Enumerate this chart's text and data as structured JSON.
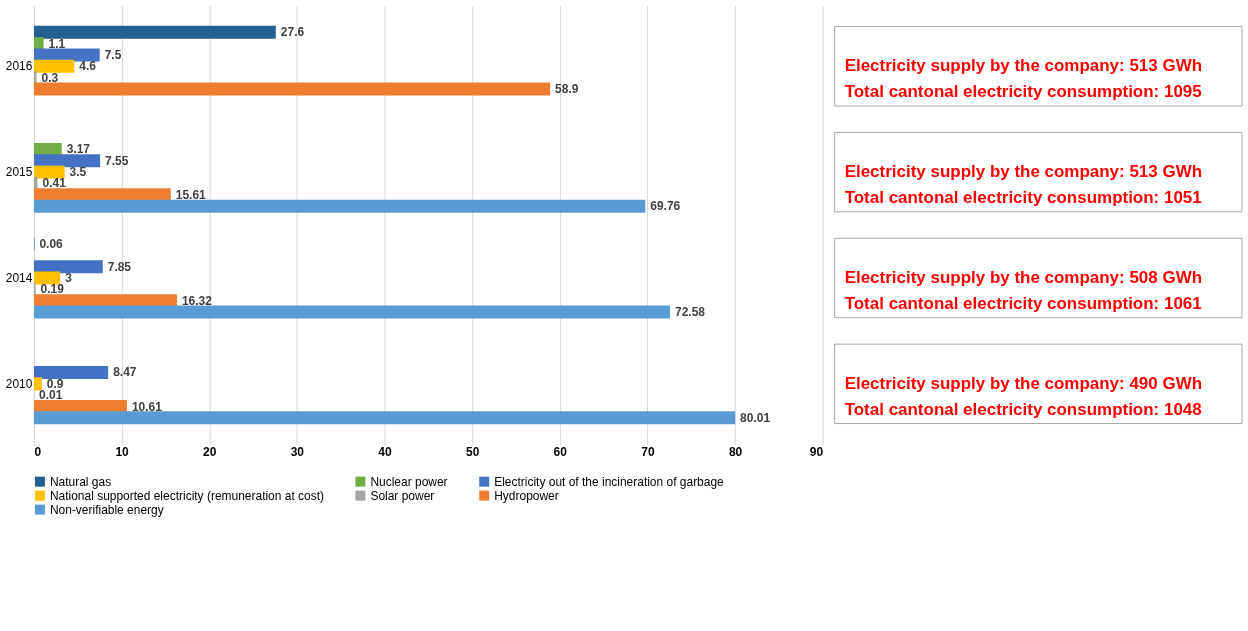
{
  "chart_data": {
    "type": "bar",
    "orientation": "horizontal",
    "categories": [
      "2016",
      "2015",
      "2014",
      "2010"
    ],
    "series": [
      {
        "name": "Natural gas",
        "color": "#255e91",
        "values": [
          27.6,
          null,
          0.06,
          null
        ]
      },
      {
        "name": "Nuclear power",
        "color": "#70ad47",
        "values": [
          1.1,
          3.17,
          null,
          null
        ]
      },
      {
        "name": "Electricity out of the incineration of garbage",
        "color": "#4472c4",
        "values": [
          7.5,
          7.55,
          7.85,
          8.47
        ]
      },
      {
        "name": "National supported electricity (remuneration at cost)",
        "color": "#ffc000",
        "values": [
          4.6,
          3.5,
          3,
          0.9
        ]
      },
      {
        "name": "Solar power",
        "color": "#a5a5a5",
        "values": [
          0.3,
          0.41,
          0.19,
          0.01
        ]
      },
      {
        "name": "Hydropower",
        "color": "#ed7d31",
        "values": [
          58.9,
          15.61,
          16.32,
          10.61
        ]
      },
      {
        "name": "Non-verifiable energy",
        "color": "#5b9bd5",
        "values": [
          null,
          69.76,
          72.58,
          80.01
        ]
      }
    ],
    "xlim": [
      0,
      90
    ],
    "xticks": [
      0,
      10,
      20,
      30,
      40,
      50,
      60,
      70,
      80,
      90
    ],
    "grid": "x",
    "legend": "bottom",
    "data_labels": true,
    "annotations": [
      "Electricity supply by the company: 513 GWh",
      "Total cantonal electricity consumption: 1095",
      "Electricity supply by the company: 513 GWh",
      "Total cantonal electricity consumption: 1051",
      "Electricity supply by the company: 508 GWh",
      "Total cantonal electricity consumption: 1061",
      "Electricity supply by the company: 490 GWh",
      "Total cantonal electricity consumption: 1048"
    ]
  }
}
